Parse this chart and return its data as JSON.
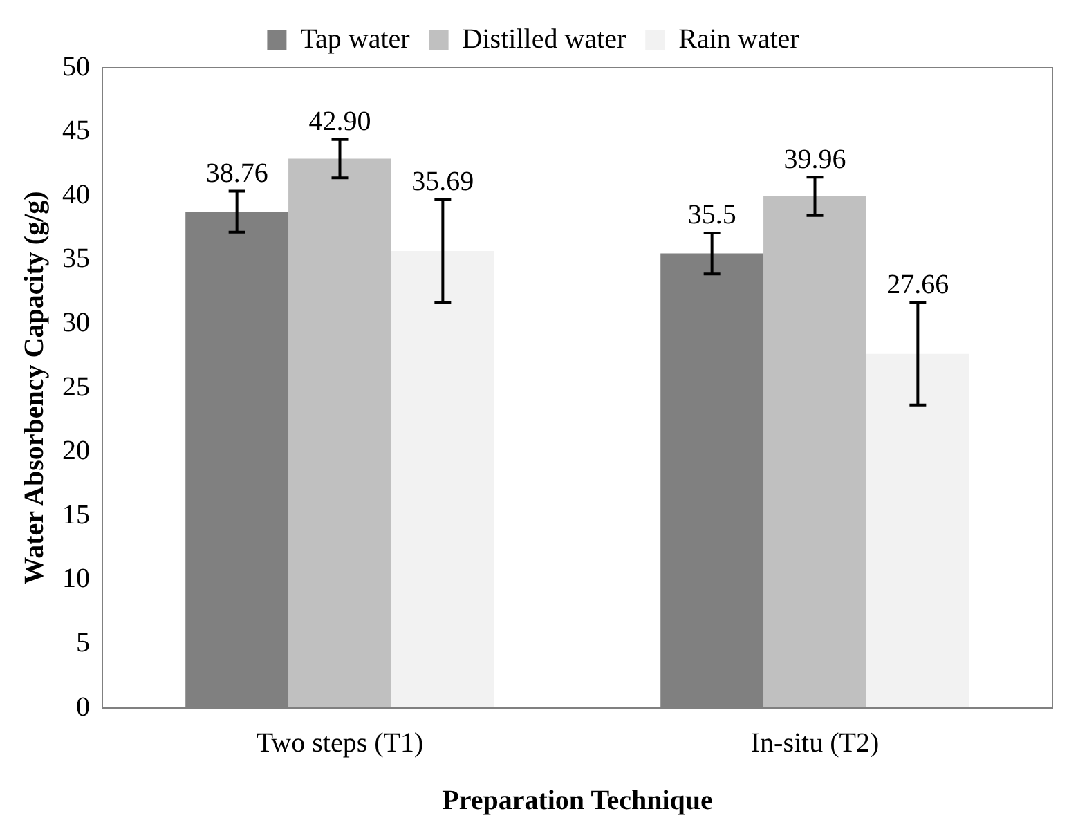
{
  "chart_data": {
    "type": "bar",
    "xlabel": "Preparation Technique",
    "ylabel": "Water Absorbency Capacity (g/g)",
    "categories": [
      "Two steps (T1)",
      "In-situ (T2)"
    ],
    "series": [
      {
        "name": "Tap water",
        "color": "#808080",
        "values": [
          38.76,
          35.5
        ],
        "errors": [
          1.6,
          1.6
        ],
        "value_labels": [
          "38.76",
          "35.5"
        ]
      },
      {
        "name": "Distilled water",
        "color": "#c0c0c0",
        "values": [
          42.9,
          39.96
        ],
        "errors": [
          1.5,
          1.5
        ],
        "value_labels": [
          "42.90",
          "39.96"
        ]
      },
      {
        "name": "Rain water",
        "color": "#f2f2f2",
        "values": [
          35.69,
          27.66
        ],
        "errors": [
          4,
          4
        ],
        "value_labels": [
          "35.69",
          "27.66"
        ]
      }
    ],
    "ylim": [
      0,
      50
    ],
    "yticks": [
      0,
      5,
      10,
      15,
      20,
      25,
      30,
      35,
      40,
      45,
      50
    ],
    "grid": false,
    "legend": "top"
  }
}
